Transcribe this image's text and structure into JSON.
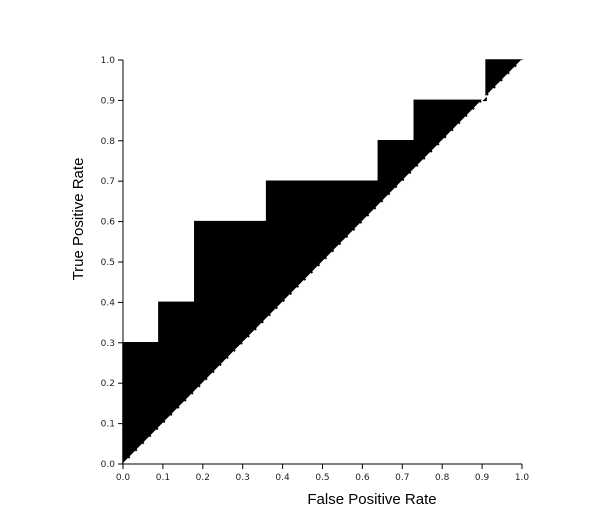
{
  "chart_data": {
    "type": "area",
    "title": "",
    "xlabel": "False Positive Rate",
    "ylabel": "True Positive Rate",
    "xlim": [
      0,
      1
    ],
    "ylim": [
      0,
      1
    ],
    "x_ticks": [
      "0.0",
      "0.1",
      "0.2",
      "0.3",
      "0.4",
      "0.5",
      "0.6",
      "0.7",
      "0.8",
      "0.9",
      "1.0"
    ],
    "y_ticks": [
      "0.0",
      "0.1",
      "0.2",
      "0.3",
      "0.4",
      "0.5",
      "0.6",
      "0.7",
      "0.8",
      "0.9",
      "1.0"
    ],
    "grid": false,
    "series": [
      {
        "role": "roc-curve",
        "x": [
          0.0,
          0.0,
          0.09,
          0.09,
          0.18,
          0.18,
          0.36,
          0.36,
          0.64,
          0.64,
          0.73,
          0.73,
          0.91,
          0.91,
          1.0
        ],
        "y": [
          0.0,
          0.3,
          0.3,
          0.4,
          0.4,
          0.6,
          0.6,
          0.7,
          0.7,
          0.8,
          0.8,
          0.9,
          0.9,
          1.0,
          1.0
        ]
      },
      {
        "role": "chance-diagonal",
        "style": "dashed",
        "x": [
          0,
          1
        ],
        "y": [
          0,
          1
        ]
      }
    ],
    "fill_color": "#000000",
    "line_color": "#000000",
    "diagonal_color": "#ffffff"
  }
}
